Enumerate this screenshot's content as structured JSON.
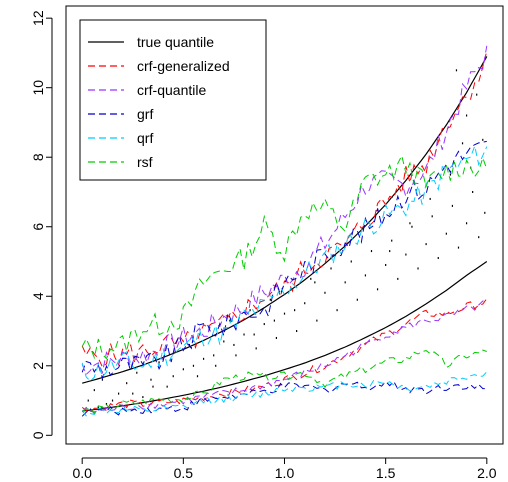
{
  "chart_data": {
    "type": "line",
    "title": "",
    "xlabel": "",
    "ylabel": "",
    "xlim": [
      -0.08,
      2.08
    ],
    "ylim": [
      -0.25,
      12.35
    ],
    "xticks": [
      0.0,
      0.5,
      1.0,
      1.5,
      2.0
    ],
    "xtick_labels": [
      "0.0",
      "0.5",
      "1.0",
      "1.5",
      "2.0"
    ],
    "yticks": [
      0,
      2,
      4,
      6,
      8,
      10,
      12
    ],
    "ytick_labels": [
      "0",
      "2",
      "4",
      "6",
      "8",
      "10",
      "12"
    ],
    "grid": false,
    "legend_position": "top-left",
    "legend": [
      {
        "label": "true quantile",
        "color": "#000000",
        "dash": "solid"
      },
      {
        "label": "crf-generalized",
        "color": "#ff0000",
        "dash": "dashed"
      },
      {
        "label": "crf-quantile",
        "color": "#9933ff",
        "dash": "dashed"
      },
      {
        "label": "grf",
        "color": "#0000cc",
        "dash": "dashed"
      },
      {
        "label": "qrf",
        "color": "#00ccff",
        "dash": "dashed"
      },
      {
        "label": "rsf",
        "color": "#00cc00",
        "dash": "dashed"
      }
    ],
    "x": [
      0.0,
      0.1,
      0.2,
      0.3,
      0.4,
      0.5,
      0.6,
      0.7,
      0.8,
      0.9,
      1.0,
      1.1,
      1.2,
      1.3,
      1.4,
      1.5,
      1.6,
      1.7,
      1.8,
      1.9,
      2.0
    ],
    "series": [
      {
        "name": "true quantile",
        "group": "upper",
        "color": "#000000",
        "values": [
          1.5,
          1.66,
          1.83,
          2.02,
          2.24,
          2.47,
          2.73,
          3.01,
          3.32,
          3.67,
          4.05,
          4.47,
          4.94,
          5.45,
          6.02,
          6.64,
          7.33,
          8.09,
          8.93,
          9.86,
          10.9
        ]
      },
      {
        "name": "true quantile",
        "group": "lower",
        "color": "#000000",
        "values": [
          0.7,
          0.77,
          0.85,
          0.94,
          1.04,
          1.15,
          1.27,
          1.4,
          1.55,
          1.71,
          1.89,
          2.08,
          2.3,
          2.54,
          2.81,
          3.1,
          3.42,
          3.78,
          4.17,
          4.6,
          5.0
        ]
      },
      {
        "name": "crf-generalized",
        "group": "upper",
        "color": "#ff0000",
        "values": [
          2.3,
          2.3,
          2.3,
          2.4,
          2.6,
          2.6,
          2.9,
          3.2,
          3.6,
          4.0,
          4.2,
          4.8,
          5.2,
          5.4,
          6.2,
          6.7,
          7.4,
          7.8,
          9.0,
          9.8,
          10.8
        ]
      },
      {
        "name": "crf-generalized",
        "group": "lower",
        "color": "#ff0000",
        "values": [
          0.75,
          0.8,
          0.9,
          0.9,
          0.95,
          1.0,
          1.1,
          1.2,
          1.3,
          1.4,
          1.6,
          1.8,
          2.0,
          2.3,
          2.6,
          2.9,
          3.2,
          3.5,
          3.5,
          3.7,
          3.85
        ]
      },
      {
        "name": "crf-quantile",
        "group": "upper",
        "color": "#9933ff",
        "values": [
          2.0,
          2.1,
          2.2,
          2.3,
          2.5,
          2.8,
          3.0,
          3.4,
          3.7,
          4.1,
          4.5,
          4.9,
          5.5,
          6.3,
          7.2,
          7.3,
          7.2,
          7.6,
          8.8,
          10.0,
          11.0
        ]
      },
      {
        "name": "crf-quantile",
        "group": "lower",
        "color": "#9933ff",
        "values": [
          0.7,
          0.7,
          0.8,
          0.85,
          0.9,
          1.0,
          1.1,
          1.2,
          1.3,
          1.45,
          1.6,
          1.8,
          2.0,
          2.3,
          2.6,
          2.9,
          3.1,
          3.3,
          3.4,
          3.6,
          3.8
        ]
      },
      {
        "name": "grf",
        "group": "upper",
        "color": "#0000cc",
        "values": [
          2.0,
          1.9,
          2.0,
          2.0,
          2.2,
          2.6,
          3.1,
          3.1,
          3.5,
          3.6,
          4.4,
          4.8,
          5.2,
          5.6,
          5.9,
          6.4,
          7.0,
          7.1,
          7.8,
          8.1,
          8.3
        ]
      },
      {
        "name": "grf",
        "group": "lower",
        "color": "#0000cc",
        "values": [
          0.65,
          0.7,
          0.7,
          0.75,
          0.75,
          0.8,
          1.0,
          1.1,
          1.15,
          1.25,
          1.4,
          1.4,
          1.3,
          1.5,
          1.4,
          1.5,
          1.35,
          1.3,
          1.4,
          1.45,
          1.3
        ]
      },
      {
        "name": "qrf",
        "group": "upper",
        "color": "#00ccff",
        "values": [
          1.8,
          1.9,
          2.1,
          2.0,
          2.3,
          2.5,
          2.9,
          2.9,
          3.4,
          3.7,
          4.2,
          4.6,
          5.1,
          5.5,
          6.0,
          6.3,
          6.6,
          7.0,
          7.6,
          7.9,
          8.2
        ]
      },
      {
        "name": "qrf",
        "group": "lower",
        "color": "#00ccff",
        "values": [
          0.65,
          0.7,
          0.72,
          0.7,
          0.75,
          0.8,
          1.0,
          1.05,
          1.1,
          1.2,
          1.35,
          1.4,
          1.35,
          1.5,
          1.45,
          1.55,
          1.35,
          1.4,
          1.55,
          1.7,
          1.8
        ]
      },
      {
        "name": "rsf",
        "group": "upper",
        "color": "#00cc00",
        "values": [
          2.5,
          2.5,
          2.6,
          3.1,
          3.2,
          3.4,
          4.4,
          4.8,
          5.1,
          6.0,
          5.3,
          6.5,
          6.5,
          6.0,
          7.3,
          7.5,
          7.8,
          7.2,
          7.6,
          7.8,
          7.6
        ]
      },
      {
        "name": "rsf",
        "group": "lower",
        "color": "#00cc00",
        "values": [
          0.7,
          0.75,
          0.9,
          0.95,
          1.05,
          1.05,
          1.2,
          1.6,
          1.7,
          1.7,
          1.7,
          1.8,
          1.5,
          1.7,
          1.9,
          2.1,
          2.2,
          2.5,
          2.0,
          2.3,
          2.4
        ]
      }
    ],
    "scatter_points": [
      [
        0.03,
        1.0
      ],
      [
        0.06,
        1.3
      ],
      [
        0.1,
        1.6
      ],
      [
        0.12,
        0.9
      ],
      [
        0.18,
        1.2
      ],
      [
        0.22,
        1.5
      ],
      [
        0.27,
        1.8
      ],
      [
        0.3,
        1.1
      ],
      [
        0.34,
        1.6
      ],
      [
        0.38,
        2.1
      ],
      [
        0.42,
        1.4
      ],
      [
        0.46,
        2.4
      ],
      [
        0.5,
        1.9
      ],
      [
        0.53,
        2.6
      ],
      [
        0.57,
        1.7
      ],
      [
        0.6,
        2.2
      ],
      [
        0.63,
        3.1
      ],
      [
        0.66,
        2.0
      ],
      [
        0.7,
        2.7
      ],
      [
        0.73,
        3.3
      ],
      [
        0.76,
        2.3
      ],
      [
        0.8,
        2.9
      ],
      [
        0.83,
        3.6
      ],
      [
        0.86,
        2.5
      ],
      [
        0.9,
        3.2
      ],
      [
        0.93,
        3.9
      ],
      [
        0.96,
        2.8
      ],
      [
        1.0,
        3.5
      ],
      [
        1.03,
        4.2
      ],
      [
        1.06,
        3.0
      ],
      [
        1.1,
        3.8
      ],
      [
        1.13,
        4.5
      ],
      [
        1.16,
        3.3
      ],
      [
        1.2,
        4.1
      ],
      [
        1.23,
        4.8
      ],
      [
        1.26,
        3.6
      ],
      [
        1.3,
        4.4
      ],
      [
        1.33,
        5.0
      ],
      [
        1.36,
        3.9
      ],
      [
        1.4,
        4.6
      ],
      [
        1.43,
        5.3
      ],
      [
        1.46,
        4.2
      ],
      [
        1.5,
        4.9
      ],
      [
        1.53,
        5.6
      ],
      [
        1.56,
        4.5
      ],
      [
        1.6,
        5.2
      ],
      [
        1.63,
        6.0
      ],
      [
        1.66,
        4.8
      ],
      [
        1.7,
        5.5
      ],
      [
        1.73,
        6.3
      ],
      [
        1.76,
        5.1
      ],
      [
        1.8,
        5.8
      ],
      [
        1.83,
        6.6
      ],
      [
        1.86,
        5.4
      ],
      [
        1.9,
        6.1
      ],
      [
        1.93,
        7.0
      ],
      [
        1.96,
        5.7
      ],
      [
        1.99,
        6.4
      ],
      [
        1.85,
        10.5
      ],
      [
        1.95,
        9.8
      ],
      [
        1.9,
        9.2
      ],
      [
        1.88,
        8.4
      ],
      [
        1.15,
        4.4
      ],
      [
        1.05,
        3.6
      ],
      [
        0.95,
        3.3
      ],
      [
        0.85,
        2.9
      ],
      [
        0.75,
        2.6
      ],
      [
        0.65,
        2.3
      ],
      [
        0.55,
        2.0
      ],
      [
        0.45,
        1.7
      ],
      [
        0.35,
        1.4
      ],
      [
        0.25,
        1.2
      ],
      [
        0.15,
        1.0
      ],
      [
        0.08,
        0.8
      ],
      [
        1.52,
        5.3
      ],
      [
        1.62,
        6.1
      ],
      [
        1.72,
        6.8
      ],
      [
        1.82,
        7.5
      ],
      [
        1.92,
        7.7
      ],
      [
        1.98,
        8.5
      ]
    ]
  }
}
